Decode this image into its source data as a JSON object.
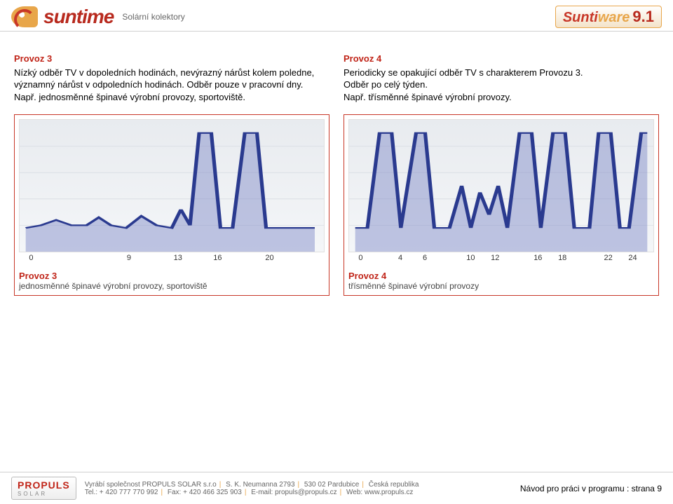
{
  "header": {
    "brand_left": "suntime",
    "subtitle": "Solární kolektory",
    "brand_right_a": "Sunti",
    "brand_right_b": "ware",
    "version": "9.1"
  },
  "left_col": {
    "title": "Provoz 3",
    "line1": "Nízký odběr TV v dopoledních hodinách, nevýrazný nárůst kolem poledne, významný nárůst v odpoledních hodinách. Odběr pouze v pracovní dny.",
    "line2": "Např. jednosměnné špinavé výrobní provozy, sportoviště."
  },
  "right_col": {
    "title": "Provoz 4",
    "line1": "Periodicky se opakující odběr TV s charakterem Provozu 3.",
    "line2": "Odběr po celý týden.",
    "line3": "Např. třísměnné špinavé výrobní provozy."
  },
  "chart_left": {
    "caption_title": "Provoz 3",
    "caption_sub": "jednosměnné špinavé výrobní provozy, sportoviště",
    "x_ticks": [
      {
        "label": "0",
        "pos": 4
      },
      {
        "label": "9",
        "pos": 36
      },
      {
        "label": "13",
        "pos": 52
      },
      {
        "label": "16",
        "pos": 65
      },
      {
        "label": "20",
        "pos": 82
      }
    ],
    "line_color": "#2a3a8f",
    "fill_color": "#7a86c5",
    "points": [
      {
        "x": 0.02,
        "y": 0.82
      },
      {
        "x": 0.07,
        "y": 0.8
      },
      {
        "x": 0.12,
        "y": 0.76
      },
      {
        "x": 0.17,
        "y": 0.8
      },
      {
        "x": 0.22,
        "y": 0.8
      },
      {
        "x": 0.26,
        "y": 0.74
      },
      {
        "x": 0.3,
        "y": 0.8
      },
      {
        "x": 0.35,
        "y": 0.82
      },
      {
        "x": 0.4,
        "y": 0.73
      },
      {
        "x": 0.45,
        "y": 0.8
      },
      {
        "x": 0.5,
        "y": 0.82
      },
      {
        "x": 0.53,
        "y": 0.68
      },
      {
        "x": 0.56,
        "y": 0.8
      },
      {
        "x": 0.59,
        "y": 0.1
      },
      {
        "x": 0.63,
        "y": 0.1
      },
      {
        "x": 0.66,
        "y": 0.82
      },
      {
        "x": 0.7,
        "y": 0.82
      },
      {
        "x": 0.74,
        "y": 0.1
      },
      {
        "x": 0.78,
        "y": 0.1
      },
      {
        "x": 0.81,
        "y": 0.82
      },
      {
        "x": 0.86,
        "y": 0.82
      },
      {
        "x": 0.92,
        "y": 0.82
      },
      {
        "x": 0.97,
        "y": 0.82
      }
    ]
  },
  "chart_right": {
    "caption_title": "Provoz 4",
    "caption_sub": "třísměnné špinavé výrobní provozy",
    "x_ticks": [
      {
        "label": "0",
        "pos": 4
      },
      {
        "label": "4",
        "pos": 17
      },
      {
        "label": "6",
        "pos": 25
      },
      {
        "label": "10",
        "pos": 40
      },
      {
        "label": "12",
        "pos": 48
      },
      {
        "label": "16",
        "pos": 62
      },
      {
        "label": "18",
        "pos": 70
      },
      {
        "label": "22",
        "pos": 85
      },
      {
        "label": "24",
        "pos": 93
      }
    ],
    "line_color": "#2a3a8f",
    "fill_color": "#7a86c5",
    "points": [
      {
        "x": 0.02,
        "y": 0.82
      },
      {
        "x": 0.06,
        "y": 0.82
      },
      {
        "x": 0.1,
        "y": 0.1
      },
      {
        "x": 0.14,
        "y": 0.1
      },
      {
        "x": 0.17,
        "y": 0.82
      },
      {
        "x": 0.22,
        "y": 0.1
      },
      {
        "x": 0.25,
        "y": 0.1
      },
      {
        "x": 0.28,
        "y": 0.82
      },
      {
        "x": 0.33,
        "y": 0.82
      },
      {
        "x": 0.37,
        "y": 0.5
      },
      {
        "x": 0.4,
        "y": 0.82
      },
      {
        "x": 0.43,
        "y": 0.55
      },
      {
        "x": 0.46,
        "y": 0.72
      },
      {
        "x": 0.49,
        "y": 0.5
      },
      {
        "x": 0.52,
        "y": 0.82
      },
      {
        "x": 0.56,
        "y": 0.1
      },
      {
        "x": 0.6,
        "y": 0.1
      },
      {
        "x": 0.63,
        "y": 0.82
      },
      {
        "x": 0.67,
        "y": 0.1
      },
      {
        "x": 0.71,
        "y": 0.1
      },
      {
        "x": 0.74,
        "y": 0.82
      },
      {
        "x": 0.79,
        "y": 0.82
      },
      {
        "x": 0.82,
        "y": 0.1
      },
      {
        "x": 0.86,
        "y": 0.1
      },
      {
        "x": 0.89,
        "y": 0.82
      },
      {
        "x": 0.92,
        "y": 0.82
      },
      {
        "x": 0.96,
        "y": 0.1
      },
      {
        "x": 0.98,
        "y": 0.1
      }
    ]
  },
  "footer": {
    "badge_top": "PROPULS",
    "badge_bottom": "SOLAR",
    "info1": "Vyrábí společnost PROPULS SOLAR s.r.o",
    "info2": "S. K. Neumanna 2793",
    "info3": "530 02 Pardubice",
    "info4": "Česká republika",
    "info5": "Tel.: + 420 777 770 992",
    "info6": "Fax: + 420 466 325 903",
    "info7": "E-mail: propuls@propuls.cz",
    "info8": "Web: www.propuls.cz",
    "page": "Návod pro práci v programu : strana 9"
  }
}
